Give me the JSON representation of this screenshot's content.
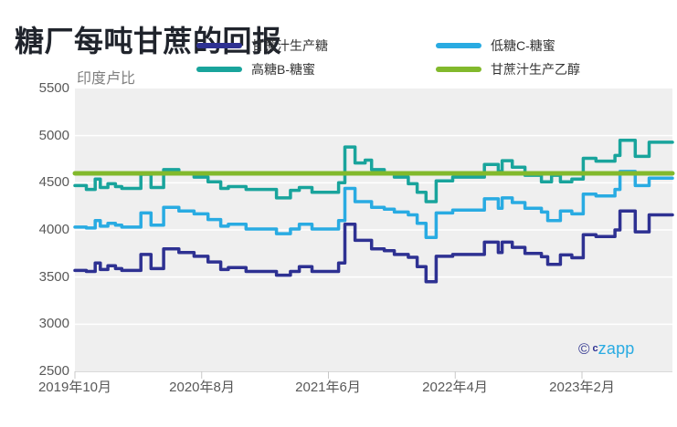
{
  "title": "糖厂每吨甘蔗的回报",
  "y_unit_label": "印度卢比",
  "legend": [
    {
      "label": "甘蔗汁生产糖",
      "color": "#2e3192"
    },
    {
      "label": "低糖C-糖蜜",
      "color": "#29abe2"
    },
    {
      "label": "高糖B-糖蜜",
      "color": "#19a49c"
    },
    {
      "label": "甘蔗汁生产乙醇",
      "color": "#82b92c"
    }
  ],
  "watermark": {
    "copyright_symbol": "©",
    "brand_prefix": "c",
    "brand_rest": "zapp"
  },
  "colors": {
    "plot_background": "#efefef",
    "gridline": "#ffffff",
    "axis_line": "#d9d9d9",
    "tick_mark": "#c8c8c8",
    "sugar_line": "#2e3192",
    "c_molasses_line": "#29abe2",
    "b_molasses_line": "#19a49c",
    "ethanol_line": "#82b92c"
  },
  "chart_data": {
    "type": "line",
    "title": "糖厂每吨甘蔗的回报",
    "xlabel": "",
    "ylabel": "印度卢比",
    "ylim": [
      2500,
      5500
    ],
    "xlim_months": [
      0,
      47.1
    ],
    "grid": true,
    "legend_position": "top",
    "line_style": "step-after",
    "y_ticks": [
      5500,
      5000,
      4500,
      4000,
      3500,
      3000,
      2500
    ],
    "x_ticks": [
      {
        "month": 0,
        "label": "2019年10月"
      },
      {
        "month": 10,
        "label": "2020年8月"
      },
      {
        "month": 20,
        "label": "2021年6月"
      },
      {
        "month": 30,
        "label": "2022年4月"
      },
      {
        "month": 40,
        "label": "2023年2月"
      }
    ],
    "x_unit": "months since 2019-10",
    "series": [
      {
        "name": "甘蔗汁生产糖",
        "color": "#2e3192",
        "width": 3.5,
        "points": [
          [
            0,
            3570
          ],
          [
            0.9,
            3560
          ],
          [
            1.6,
            3650
          ],
          [
            2,
            3580
          ],
          [
            2.6,
            3620
          ],
          [
            3.2,
            3590
          ],
          [
            3.7,
            3570
          ],
          [
            5.2,
            3740
          ],
          [
            6,
            3590
          ],
          [
            7,
            3800
          ],
          [
            8.2,
            3760
          ],
          [
            9.4,
            3720
          ],
          [
            10.5,
            3660
          ],
          [
            11.5,
            3580
          ],
          [
            12.1,
            3600
          ],
          [
            13.5,
            3560
          ],
          [
            15.9,
            3520
          ],
          [
            17,
            3560
          ],
          [
            17.7,
            3610
          ],
          [
            18.7,
            3560
          ],
          [
            20.8,
            3650
          ],
          [
            21.3,
            4060
          ],
          [
            22.1,
            3890
          ],
          [
            23.4,
            3800
          ],
          [
            24.4,
            3780
          ],
          [
            25.2,
            3740
          ],
          [
            26.3,
            3710
          ],
          [
            27,
            3610
          ],
          [
            27.7,
            3450
          ],
          [
            28.5,
            3720
          ],
          [
            29.8,
            3740
          ],
          [
            32.3,
            3870
          ],
          [
            33.4,
            3760
          ],
          [
            33.7,
            3870
          ],
          [
            34.5,
            3815
          ],
          [
            35.5,
            3750
          ],
          [
            36.8,
            3715
          ],
          [
            37.3,
            3635
          ],
          [
            38.3,
            3735
          ],
          [
            39.2,
            3705
          ],
          [
            40.1,
            3950
          ],
          [
            41.1,
            3930
          ],
          [
            42.6,
            4000
          ],
          [
            43,
            4200
          ],
          [
            44.2,
            3980
          ],
          [
            45.3,
            4160
          ],
          [
            47.1,
            4160
          ]
        ]
      },
      {
        "name": "低糖C-糖蜜",
        "color": "#29abe2",
        "width": 3.5,
        "points": [
          [
            0,
            4030
          ],
          [
            0.9,
            4020
          ],
          [
            1.6,
            4100
          ],
          [
            2,
            4040
          ],
          [
            2.6,
            4070
          ],
          [
            3.2,
            4050
          ],
          [
            3.7,
            4030
          ],
          [
            5.2,
            4180
          ],
          [
            6,
            4050
          ],
          [
            7,
            4240
          ],
          [
            8.2,
            4200
          ],
          [
            9.4,
            4170
          ],
          [
            10.5,
            4110
          ],
          [
            11.5,
            4040
          ],
          [
            12.1,
            4060
          ],
          [
            13.5,
            4010
          ],
          [
            15.9,
            3960
          ],
          [
            17,
            4010
          ],
          [
            17.7,
            4060
          ],
          [
            18.7,
            4010
          ],
          [
            20.8,
            4100
          ],
          [
            21.3,
            4440
          ],
          [
            22.1,
            4300
          ],
          [
            23.4,
            4240
          ],
          [
            24.4,
            4220
          ],
          [
            25.2,
            4190
          ],
          [
            26.3,
            4160
          ],
          [
            27,
            4070
          ],
          [
            27.7,
            3920
          ],
          [
            28.5,
            4180
          ],
          [
            29.8,
            4210
          ],
          [
            32.3,
            4330
          ],
          [
            33.4,
            4230
          ],
          [
            33.7,
            4340
          ],
          [
            34.5,
            4290
          ],
          [
            35.5,
            4230
          ],
          [
            36.8,
            4190
          ],
          [
            37.3,
            4100
          ],
          [
            38.3,
            4200
          ],
          [
            39.2,
            4170
          ],
          [
            40.1,
            4380
          ],
          [
            41.1,
            4360
          ],
          [
            42.6,
            4430
          ],
          [
            43,
            4620
          ],
          [
            44.2,
            4470
          ],
          [
            45.3,
            4550
          ],
          [
            47.1,
            4550
          ]
        ]
      },
      {
        "name": "高糖B-糖蜜",
        "color": "#19a49c",
        "width": 3.5,
        "points": [
          [
            0,
            4470
          ],
          [
            0.9,
            4430
          ],
          [
            1.6,
            4540
          ],
          [
            2,
            4450
          ],
          [
            2.6,
            4490
          ],
          [
            3.2,
            4460
          ],
          [
            3.7,
            4440
          ],
          [
            5.2,
            4590
          ],
          [
            6,
            4450
          ],
          [
            7,
            4640
          ],
          [
            8.2,
            4600
          ],
          [
            9.4,
            4560
          ],
          [
            10.5,
            4510
          ],
          [
            11.5,
            4440
          ],
          [
            12.1,
            4460
          ],
          [
            13.5,
            4430
          ],
          [
            15.9,
            4340
          ],
          [
            17,
            4420
          ],
          [
            17.7,
            4450
          ],
          [
            18.7,
            4400
          ],
          [
            20.8,
            4500
          ],
          [
            21.3,
            4880
          ],
          [
            22.1,
            4710
          ],
          [
            22.9,
            4740
          ],
          [
            23.4,
            4640
          ],
          [
            24.4,
            4600
          ],
          [
            25.2,
            4560
          ],
          [
            26.3,
            4490
          ],
          [
            27,
            4400
          ],
          [
            27.7,
            4300
          ],
          [
            28.5,
            4520
          ],
          [
            29.8,
            4560
          ],
          [
            32.3,
            4695
          ],
          [
            33.4,
            4620
          ],
          [
            33.7,
            4735
          ],
          [
            34.5,
            4665
          ],
          [
            35.5,
            4580
          ],
          [
            36.8,
            4510
          ],
          [
            37.6,
            4580
          ],
          [
            38.3,
            4510
          ],
          [
            39.2,
            4540
          ],
          [
            40.1,
            4760
          ],
          [
            41.1,
            4730
          ],
          [
            42.6,
            4790
          ],
          [
            43,
            4950
          ],
          [
            44.2,
            4780
          ],
          [
            45.3,
            4930
          ],
          [
            47.1,
            4930
          ]
        ]
      },
      {
        "name": "甘蔗汁生产乙醇",
        "color": "#82b92c",
        "width": 5,
        "points": [
          [
            0,
            4600
          ],
          [
            47.1,
            4600
          ]
        ]
      }
    ]
  }
}
